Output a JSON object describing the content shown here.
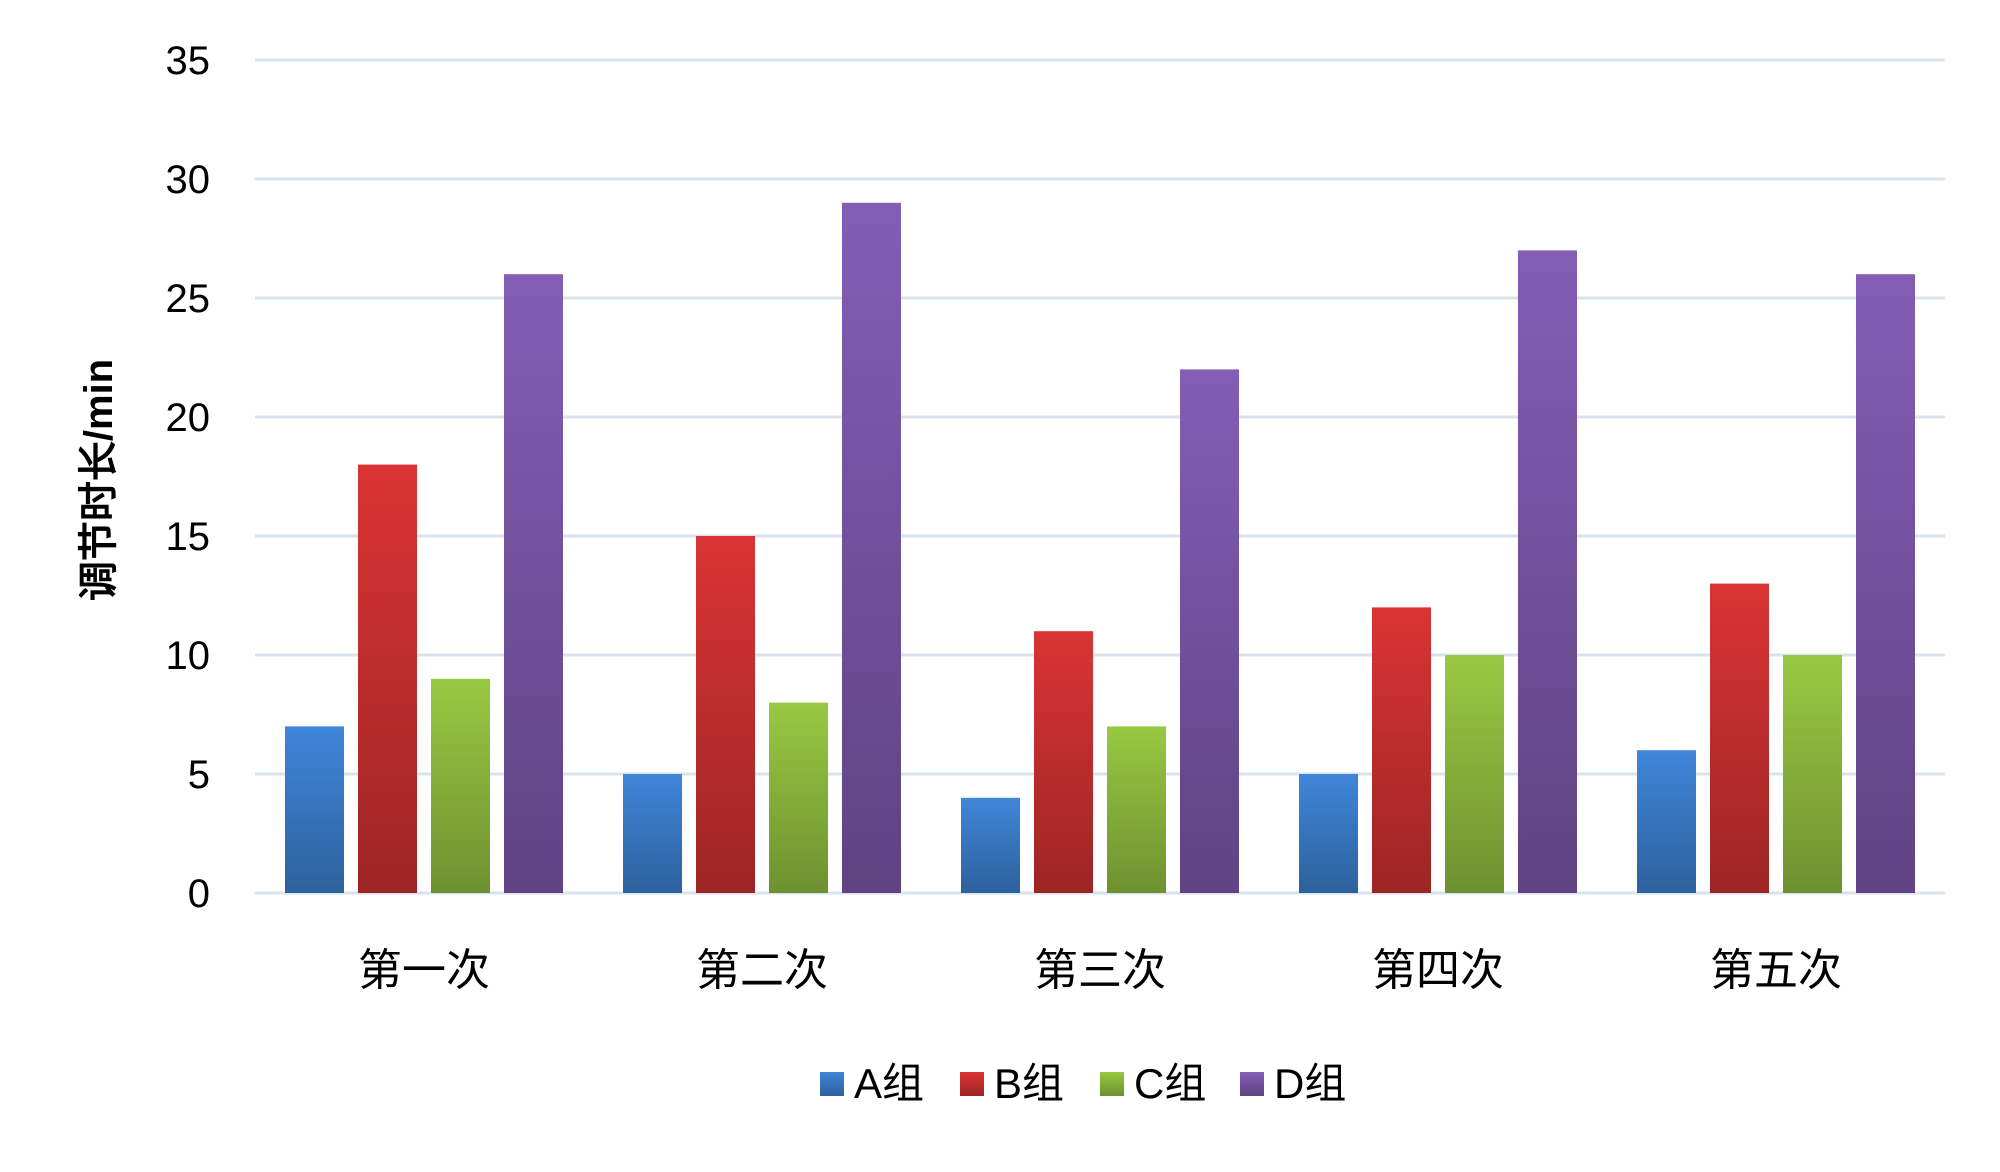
{
  "chart_data": {
    "type": "bar",
    "title": "",
    "xlabel": "",
    "ylabel": "调节时长/min",
    "ylim": [
      0,
      35
    ],
    "yticks": [
      0,
      5,
      10,
      15,
      20,
      25,
      30,
      35
    ],
    "grid": true,
    "legend_position": "bottom",
    "categories": [
      "第一次",
      "第二次",
      "第三次",
      "第四次",
      "第五次"
    ],
    "series": [
      {
        "name": "A组",
        "color": "#3A7CC9",
        "values": [
          7,
          5,
          4,
          5,
          6
        ]
      },
      {
        "name": "B组",
        "color": "#C9302F",
        "values": [
          18,
          15,
          11,
          12,
          13
        ]
      },
      {
        "name": "C组",
        "color": "#8DBA3D",
        "values": [
          9,
          8,
          7,
          10,
          10
        ]
      },
      {
        "name": "D组",
        "color": "#7A56A8",
        "values": [
          26,
          29,
          22,
          27,
          26
        ]
      }
    ],
    "gridline_color": "#D9E3EE"
  }
}
